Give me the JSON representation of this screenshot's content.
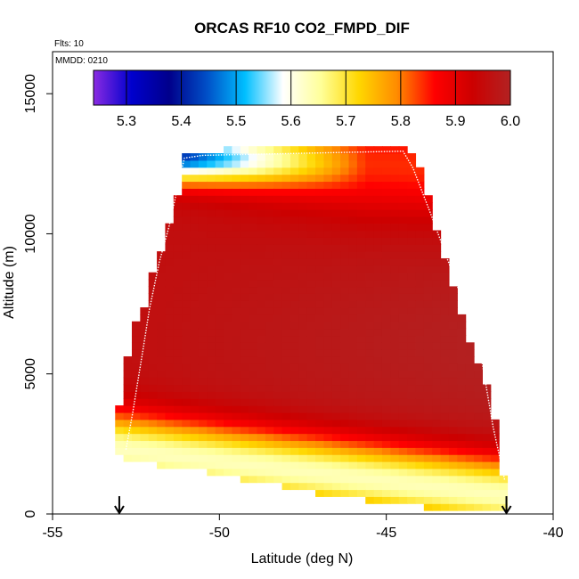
{
  "chart_data": {
    "type": "heatmap",
    "title": "ORCAS RF10 CO2_FMPD_DIF",
    "flights_label": "Flts: 10",
    "date_label": "MMDD: 0210",
    "xlabel": "Latitude (deg N)",
    "ylabel": "Altitude (m)",
    "xlim": [
      -55,
      -40
    ],
    "ylim": [
      0,
      16500
    ],
    "x_ticks": [
      -55,
      -50,
      -45,
      -40
    ],
    "x_tick_labels": [
      "-55",
      "-50",
      "-45",
      "-40"
    ],
    "y_ticks": [
      0,
      5000,
      10000,
      15000
    ],
    "y_tick_labels": [
      "0",
      "5000",
      "10000",
      "15000"
    ],
    "colorbar": {
      "range": [
        5.24,
        6.0
      ],
      "ticks": [
        5.3,
        5.4,
        5.5,
        5.6,
        5.7,
        5.8,
        5.9,
        6.0
      ],
      "tick_labels": [
        "5.3",
        "5.4",
        "5.5",
        "5.6",
        "5.7",
        "5.8",
        "5.9",
        "6.0"
      ],
      "colors": [
        "#8a2be2",
        "#0000cd",
        "#00008b",
        "#0050c8",
        "#00bfff",
        "#ffffff",
        "#ffff99",
        "#ffd700",
        "#ff8c00",
        "#ff0000",
        "#cc0000",
        "#b22222"
      ]
    },
    "grid": {
      "lat_start": -53.0,
      "lat_step": 0.25,
      "n_cols": 47,
      "alt_step": 250,
      "ranges": [
        [
          -53.0,
          2250,
          3750
        ],
        [
          -52.75,
          2000,
          5500
        ],
        [
          -52.5,
          2000,
          6750
        ],
        [
          -52.25,
          2000,
          7250
        ],
        [
          -52.0,
          2000,
          8500
        ],
        [
          -51.75,
          1750,
          9250
        ],
        [
          -51.5,
          1750,
          10250
        ],
        [
          -51.25,
          1750,
          11250
        ],
        [
          -51.0,
          1750,
          12750
        ],
        [
          -50.75,
          1750,
          12750
        ],
        [
          -50.5,
          1750,
          12750
        ],
        [
          -50.25,
          1500,
          12750
        ],
        [
          -50.0,
          1500,
          12750
        ],
        [
          -49.75,
          1500,
          13000
        ],
        [
          -49.5,
          1500,
          13000
        ],
        [
          -49.25,
          1250,
          13000
        ],
        [
          -49.0,
          1250,
          13000
        ],
        [
          -48.75,
          1250,
          13000
        ],
        [
          -48.5,
          1250,
          13000
        ],
        [
          -48.25,
          1250,
          13000
        ],
        [
          -48.0,
          1000,
          13000
        ],
        [
          -47.75,
          1000,
          13000
        ],
        [
          -47.5,
          1000,
          13000
        ],
        [
          -47.25,
          1000,
          13000
        ],
        [
          -47.0,
          750,
          13000
        ],
        [
          -46.75,
          750,
          13000
        ],
        [
          -46.5,
          750,
          13000
        ],
        [
          -46.25,
          750,
          13000
        ],
        [
          -46.0,
          750,
          13000
        ],
        [
          -45.75,
          750,
          13000
        ],
        [
          -45.5,
          500,
          13000
        ],
        [
          -45.25,
          500,
          13000
        ],
        [
          -45.0,
          500,
          13000
        ],
        [
          -44.75,
          500,
          13000
        ],
        [
          -44.5,
          500,
          13000
        ],
        [
          -44.25,
          500,
          12750
        ],
        [
          -44.0,
          500,
          12250
        ],
        [
          -43.75,
          250,
          11250
        ],
        [
          -43.5,
          250,
          10000
        ],
        [
          -43.25,
          250,
          9000
        ],
        [
          -43.0,
          250,
          8000
        ],
        [
          -42.75,
          250,
          7000
        ],
        [
          -42.5,
          250,
          6000
        ],
        [
          -42.25,
          250,
          5250
        ],
        [
          -42.0,
          250,
          4500
        ],
        [
          -41.75,
          250,
          3250
        ],
        [
          -41.5,
          250,
          1250
        ]
      ]
    },
    "flight_track": [
      [
        -52.8,
        2300
      ],
      [
        -52.6,
        3600
      ],
      [
        -52.3,
        5800
      ],
      [
        -52.1,
        7300
      ],
      [
        -51.8,
        9000
      ],
      [
        -51.5,
        10300
      ],
      [
        -51.3,
        11400
      ],
      [
        -51.05,
        12700
      ],
      [
        -50.5,
        12800
      ],
      [
        -44.5,
        12950
      ],
      [
        -44.2,
        12350
      ],
      [
        -43.6,
        10500
      ],
      [
        -42.8,
        7900
      ],
      [
        -42.2,
        5900
      ],
      [
        -41.8,
        3100
      ],
      [
        -41.45,
        1200
      ]
    ],
    "markers": [
      {
        "lat": -53.0,
        "symbol": "down-arrow"
      },
      {
        "lat": -41.4,
        "symbol": "down-arrow"
      }
    ]
  }
}
